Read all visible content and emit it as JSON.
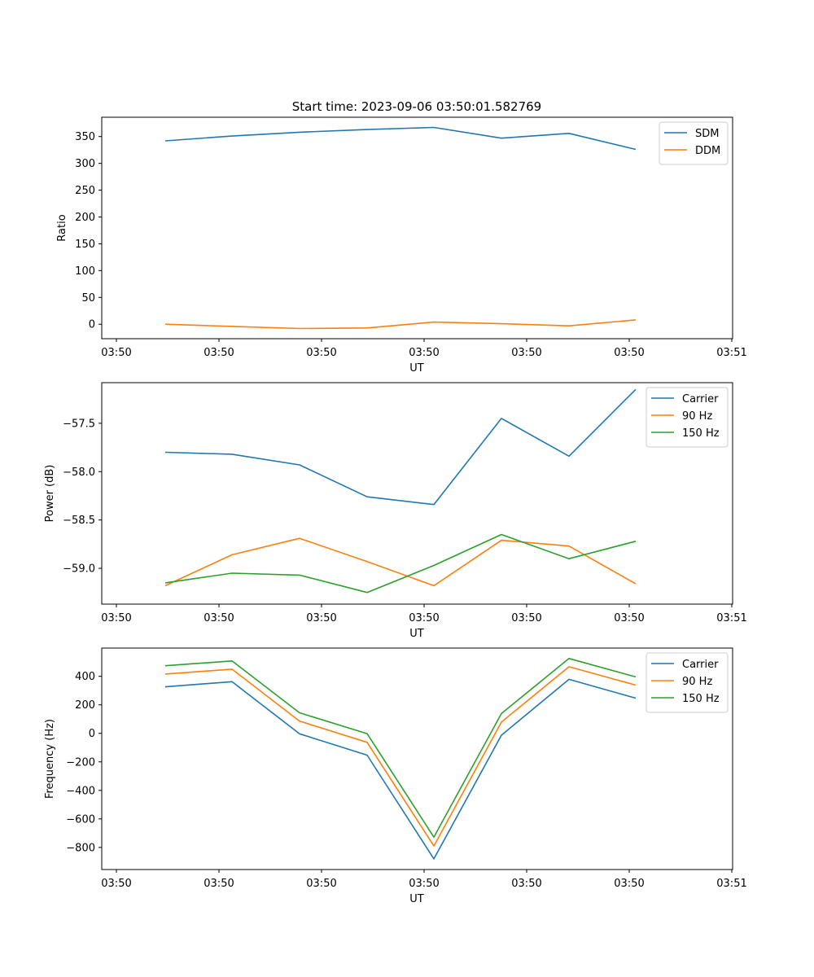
{
  "chart_data": [
    {
      "type": "line",
      "title": "Start time: 2023-09-06 03:50:01.582769",
      "xlabel": "UT",
      "ylabel": "Ratio",
      "x_tick_labels": [
        "03:50",
        "03:50",
        "03:50",
        "03:50",
        "03:50",
        "03:50",
        "03:51"
      ],
      "ylim": [
        -27,
        386
      ],
      "yticks": [
        0,
        50,
        100,
        150,
        200,
        250,
        300,
        350
      ],
      "ytick_labels": [
        "0",
        "50",
        "100",
        "150",
        "200",
        "250",
        "300",
        "350"
      ],
      "legend_position": "top-right",
      "series": [
        {
          "name": "SDM",
          "color": "#1f77b4",
          "values": [
            342,
            351,
            358,
            363,
            367,
            347,
            356,
            326
          ]
        },
        {
          "name": "DDM",
          "color": "#ff7f0e",
          "values": [
            0,
            -4,
            -8,
            -7,
            4,
            1,
            -3,
            8
          ]
        }
      ]
    },
    {
      "type": "line",
      "title": "",
      "xlabel": "UT",
      "ylabel": "Power (dB)",
      "x_tick_labels": [
        "03:50",
        "03:50",
        "03:50",
        "03:50",
        "03:50",
        "03:50",
        "03:51"
      ],
      "ylim": [
        -59.37,
        -57.08
      ],
      "yticks": [
        -59.0,
        -58.5,
        -58.0,
        -57.5
      ],
      "ytick_labels": [
        "−59.0",
        "−58.5",
        "−58.0",
        "−57.5"
      ],
      "legend_position": "top-right",
      "series": [
        {
          "name": "Carrier",
          "color": "#1f77b4",
          "values": [
            -57.8,
            -57.82,
            -57.93,
            -58.26,
            -58.34,
            -57.45,
            -57.84,
            -57.15
          ]
        },
        {
          "name": "90 Hz",
          "color": "#ff7f0e",
          "values": [
            -59.18,
            -58.86,
            -58.69,
            -58.93,
            -59.18,
            -58.71,
            -58.77,
            -59.16
          ]
        },
        {
          "name": "150 Hz",
          "color": "#2ca02c",
          "values": [
            -59.15,
            -59.05,
            -59.07,
            -59.25,
            -58.97,
            -58.65,
            -58.9,
            -58.72
          ]
        }
      ]
    },
    {
      "type": "line",
      "title": "",
      "xlabel": "UT",
      "ylabel": "Frequency (Hz)",
      "x_tick_labels": [
        "03:50",
        "03:50",
        "03:50",
        "03:50",
        "03:50",
        "03:50",
        "03:51"
      ],
      "ylim": [
        -955,
        598
      ],
      "yticks": [
        -800,
        -600,
        -400,
        -200,
        0,
        200,
        400
      ],
      "ytick_labels": [
        "−800",
        "−600",
        "−400",
        "−200",
        "0",
        "200",
        "400"
      ],
      "legend_position": "top-right",
      "series": [
        {
          "name": "Carrier",
          "color": "#1f77b4",
          "values": [
            326,
            362,
            -3,
            -153,
            -880,
            -13,
            379,
            247
          ]
        },
        {
          "name": "90 Hz",
          "color": "#ff7f0e",
          "values": [
            416,
            450,
            86,
            -63,
            -790,
            79,
            467,
            338
          ]
        },
        {
          "name": "150 Hz",
          "color": "#2ca02c",
          "values": [
            474,
            508,
            144,
            -2,
            -728,
            139,
            525,
            396
          ]
        }
      ]
    }
  ]
}
